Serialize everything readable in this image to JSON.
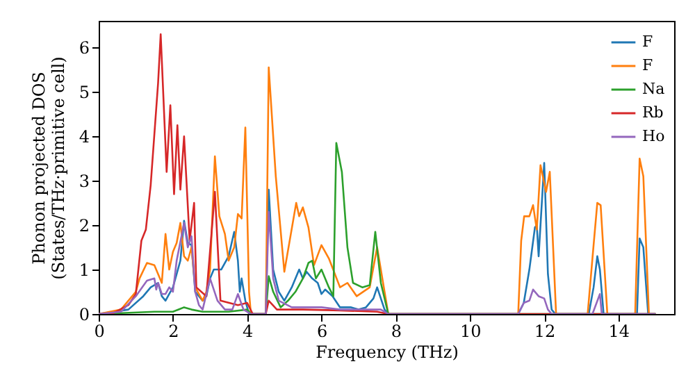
{
  "chart_data": {
    "type": "line",
    "xlabel": "Frequency (THz)",
    "ylabel": "Phonon projected DOS\n(States/THz·primitive cell)",
    "xlim": [
      0,
      15.5
    ],
    "ylim": [
      0,
      6.6
    ],
    "xticks": [
      0,
      2,
      4,
      6,
      8,
      10,
      12,
      14
    ],
    "yticks": [
      0,
      1,
      2,
      3,
      4,
      5,
      6
    ],
    "legend": "top right",
    "line_style": "solid",
    "series": [
      {
        "name": "F",
        "color": "#1f77b4",
        "x": [
          0,
          0.8,
          1.2,
          1.4,
          1.6,
          1.7,
          1.8,
          1.9,
          2.0,
          2.2,
          2.3,
          2.4,
          2.5,
          2.6,
          2.8,
          2.9,
          3.0,
          3.1,
          3.3,
          3.5,
          3.65,
          3.75,
          3.8,
          3.85,
          3.95,
          4.05,
          4.5,
          4.58,
          4.7,
          4.85,
          5.0,
          5.2,
          5.4,
          5.5,
          5.6,
          5.75,
          5.9,
          6.0,
          6.1,
          6.3,
          6.5,
          6.8,
          7.0,
          7.2,
          7.4,
          7.5,
          7.7,
          7.8,
          11.3,
          11.45,
          11.6,
          11.75,
          11.8,
          11.85,
          12.0,
          12.1,
          12.2,
          12.3,
          13.2,
          13.33,
          13.43,
          13.5,
          13.6,
          14.5,
          14.57,
          14.67,
          14.8,
          15.0
        ],
        "values": [
          0,
          0.1,
          0.4,
          0.6,
          0.7,
          0.4,
          0.3,
          0.45,
          0.6,
          1.2,
          2.1,
          1.6,
          1.55,
          0.5,
          0.3,
          0.4,
          0.8,
          1.0,
          1.0,
          1.3,
          1.85,
          1.2,
          0.5,
          0.8,
          0.3,
          0,
          0,
          2.8,
          1.0,
          0.5,
          0.3,
          0.6,
          1.0,
          0.8,
          0.95,
          0.8,
          0.7,
          0.45,
          0.55,
          0.4,
          0.15,
          0.15,
          0.1,
          0.15,
          0.35,
          0.6,
          0.1,
          0,
          0,
          0.25,
          1.0,
          1.95,
          2.0,
          1.3,
          3.4,
          0.9,
          0.1,
          0,
          0,
          0.6,
          1.3,
          1.0,
          0,
          0,
          1.7,
          1.5,
          0,
          0
        ]
      },
      {
        "name": "F",
        "color": "#ff7f0e",
        "x": [
          0,
          0.6,
          1.0,
          1.1,
          1.3,
          1.5,
          1.6,
          1.7,
          1.8,
          1.9,
          2.0,
          2.1,
          2.2,
          2.3,
          2.4,
          2.5,
          2.6,
          2.8,
          2.9,
          3.0,
          3.13,
          3.25,
          3.4,
          3.5,
          3.65,
          3.75,
          3.85,
          3.95,
          4.05,
          4.1,
          4.5,
          4.58,
          4.77,
          5.0,
          5.32,
          5.4,
          5.5,
          5.65,
          5.8,
          6.0,
          6.2,
          6.5,
          6.7,
          6.95,
          7.3,
          7.5,
          7.8,
          11.3,
          11.38,
          11.46,
          11.6,
          11.7,
          11.8,
          11.9,
          12.05,
          12.15,
          12.32,
          13.17,
          13.33,
          13.43,
          13.52,
          13.7,
          14.45,
          14.57,
          14.67,
          14.82,
          15.0
        ],
        "values": [
          0,
          0.1,
          0.5,
          0.8,
          1.15,
          1.1,
          0.9,
          0.7,
          1.8,
          1.0,
          1.4,
          1.6,
          2.05,
          1.3,
          1.2,
          1.5,
          0.6,
          0.3,
          0.5,
          1.0,
          3.55,
          2.2,
          1.8,
          1.2,
          1.5,
          2.25,
          2.15,
          4.2,
          0.5,
          0,
          0,
          5.55,
          3.1,
          0.95,
          2.5,
          2.2,
          2.4,
          1.95,
          1.1,
          1.55,
          1.25,
          0.6,
          0.7,
          0.4,
          0.6,
          1.5,
          0,
          0,
          1.65,
          2.2,
          2.2,
          2.45,
          1.9,
          3.35,
          2.75,
          3.2,
          0,
          0,
          1.55,
          2.5,
          2.45,
          0,
          0,
          3.5,
          3.1,
          0,
          0
        ]
      },
      {
        "name": "Na",
        "color": "#2ca02c",
        "x": [
          0,
          0.6,
          1.5,
          2.0,
          2.3,
          2.5,
          2.8,
          3.5,
          4.0,
          4.1,
          4.5,
          4.58,
          4.7,
          4.9,
          5.1,
          5.3,
          5.5,
          5.65,
          5.75,
          5.85,
          6.0,
          6.2,
          6.32,
          6.4,
          6.55,
          6.7,
          6.85,
          7.1,
          7.3,
          7.45,
          7.6,
          7.8,
          15.0
        ],
        "values": [
          0,
          0.02,
          0.05,
          0.05,
          0.15,
          0.1,
          0.05,
          0.05,
          0.1,
          0,
          0,
          0.85,
          0.5,
          0.15,
          0.3,
          0.5,
          0.8,
          1.15,
          1.2,
          0.8,
          1.0,
          0.6,
          0.4,
          3.85,
          3.2,
          1.5,
          0.7,
          0.6,
          0.65,
          1.85,
          0.7,
          0,
          0
        ]
      },
      {
        "name": "Rb",
        "color": "#d62728",
        "x": [
          0,
          0.4,
          0.8,
          1.0,
          1.15,
          1.27,
          1.4,
          1.6,
          1.67,
          1.83,
          1.93,
          2.03,
          2.12,
          2.2,
          2.3,
          2.45,
          2.57,
          2.63,
          2.9,
          3.13,
          3.28,
          3.75,
          4.0,
          4.15,
          4.5,
          4.58,
          4.8,
          5.5,
          6.5,
          7.5,
          7.8,
          15.0
        ],
        "values": [
          0,
          0.02,
          0.2,
          0.45,
          1.65,
          1.9,
          2.9,
          5.2,
          6.3,
          3.2,
          4.7,
          2.7,
          4.25,
          2.8,
          4.0,
          1.65,
          2.5,
          0.6,
          0.4,
          2.75,
          0.3,
          0.2,
          0.25,
          0,
          0,
          0.3,
          0.1,
          0.1,
          0.08,
          0.05,
          0,
          0
        ]
      },
      {
        "name": "Ho",
        "color": "#9467bd",
        "x": [
          0,
          0.6,
          1.0,
          1.3,
          1.5,
          1.55,
          1.6,
          1.7,
          1.8,
          1.9,
          2.0,
          2.1,
          2.3,
          2.4,
          2.5,
          2.6,
          2.7,
          2.8,
          3.0,
          3.2,
          3.4,
          3.6,
          3.75,
          3.9,
          4.1,
          4.5,
          4.58,
          4.7,
          4.85,
          5.2,
          6.0,
          6.5,
          7.2,
          7.6,
          7.8,
          11.3,
          11.45,
          11.6,
          11.7,
          11.85,
          12.0,
          12.1,
          12.2,
          13.3,
          13.5,
          13.55,
          15.0
        ],
        "values": [
          0,
          0.05,
          0.4,
          0.75,
          0.8,
          0.55,
          0.7,
          0.45,
          0.45,
          0.6,
          0.5,
          1.2,
          2.05,
          1.5,
          1.75,
          0.5,
          0.2,
          0.1,
          0.8,
          0.3,
          0.1,
          0.1,
          0.45,
          0.1,
          0,
          0,
          2.3,
          0.8,
          0.3,
          0.15,
          0.15,
          0.1,
          0.1,
          0.1,
          0,
          0,
          0.25,
          0.3,
          0.55,
          0.4,
          0.35,
          0.1,
          0,
          0,
          0.45,
          0,
          0
        ]
      }
    ]
  }
}
